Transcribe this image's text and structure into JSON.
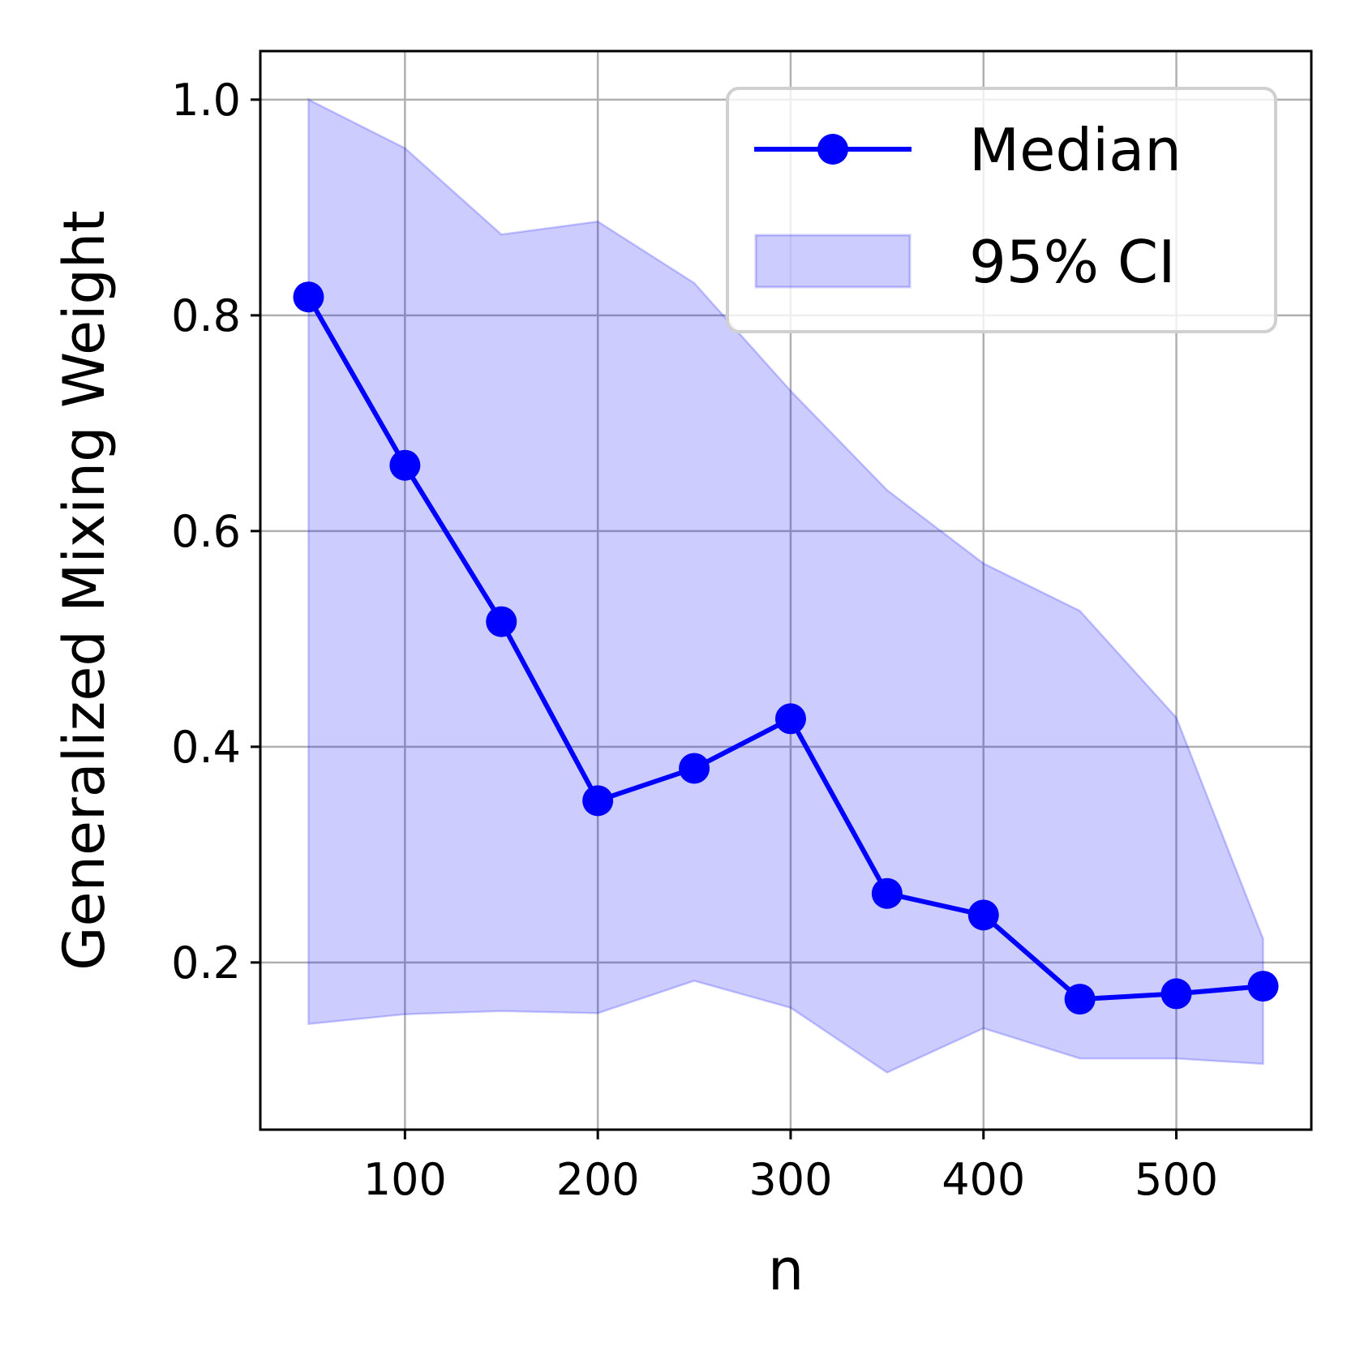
{
  "chart_data": {
    "type": "line",
    "title": "",
    "xlabel": "n",
    "ylabel": "Generalized Mixing Weight",
    "xlim": [
      25,
      570
    ],
    "ylim": [
      0.045,
      1.045
    ],
    "xticks": [
      100,
      200,
      300,
      400,
      500
    ],
    "xtick_labels": [
      "100",
      "200",
      "300",
      "400",
      "500"
    ],
    "yticks": [
      0.2,
      0.4,
      0.6,
      0.8,
      1.0
    ],
    "ytick_labels": [
      "0.2",
      "0.4",
      "0.6",
      "0.8",
      "1.0"
    ],
    "grid": true,
    "legend_position": "top-right",
    "x": [
      50,
      100,
      150,
      200,
      250,
      300,
      350,
      400,
      450,
      500,
      545
    ],
    "series": [
      {
        "name": "Median",
        "kind": "line-marker",
        "color": "#0000ff",
        "values": [
          0.817,
          0.661,
          0.516,
          0.35,
          0.38,
          0.426,
          0.264,
          0.244,
          0.166,
          0.171,
          0.178
        ]
      },
      {
        "name": "95% CI",
        "kind": "band",
        "color": "#0000ff",
        "lower": [
          0.143,
          0.152,
          0.155,
          0.153,
          0.183,
          0.158,
          0.098,
          0.139,
          0.111,
          0.111,
          0.106
        ],
        "upper": [
          1.0,
          0.955,
          0.875,
          0.887,
          0.83,
          0.73,
          0.638,
          0.57,
          0.526,
          0.427,
          0.222
        ]
      }
    ]
  }
}
